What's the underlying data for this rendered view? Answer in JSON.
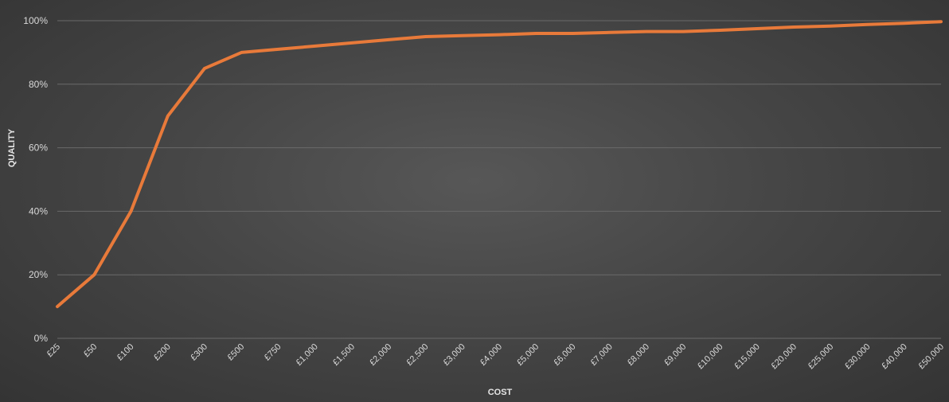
{
  "chart_data": {
    "type": "line",
    "title": "",
    "xlabel": "COST",
    "ylabel": "QUALITY",
    "ylim": [
      0,
      100
    ],
    "y_ticks": [
      "0%",
      "20%",
      "40%",
      "60%",
      "80%",
      "100%"
    ],
    "y_tick_values": [
      0,
      20,
      40,
      60,
      80,
      100
    ],
    "grid": true,
    "legend": "none",
    "line_color": "#E87A3A",
    "categories": [
      "£25",
      "£50",
      "£100",
      "£200",
      "£300",
      "£500",
      "£750",
      "£1,000",
      "£1,500",
      "£2,000",
      "£2,500",
      "£3,000",
      "£4,000",
      "£5,000",
      "£6,000",
      "£7,000",
      "£8,000",
      "£9,000",
      "£10,000",
      "£15,000",
      "£20,000",
      "£25,000",
      "£30,000",
      "£40,000",
      "£50,000"
    ],
    "series": [
      {
        "values": [
          10,
          20,
          40,
          70,
          85,
          90,
          91,
          92,
          93,
          94,
          95,
          95.3,
          95.6,
          96,
          96,
          96.3,
          96.6,
          96.6,
          97,
          97.5,
          98,
          98.3,
          98.8,
          99.2,
          99.7
        ]
      }
    ]
  }
}
